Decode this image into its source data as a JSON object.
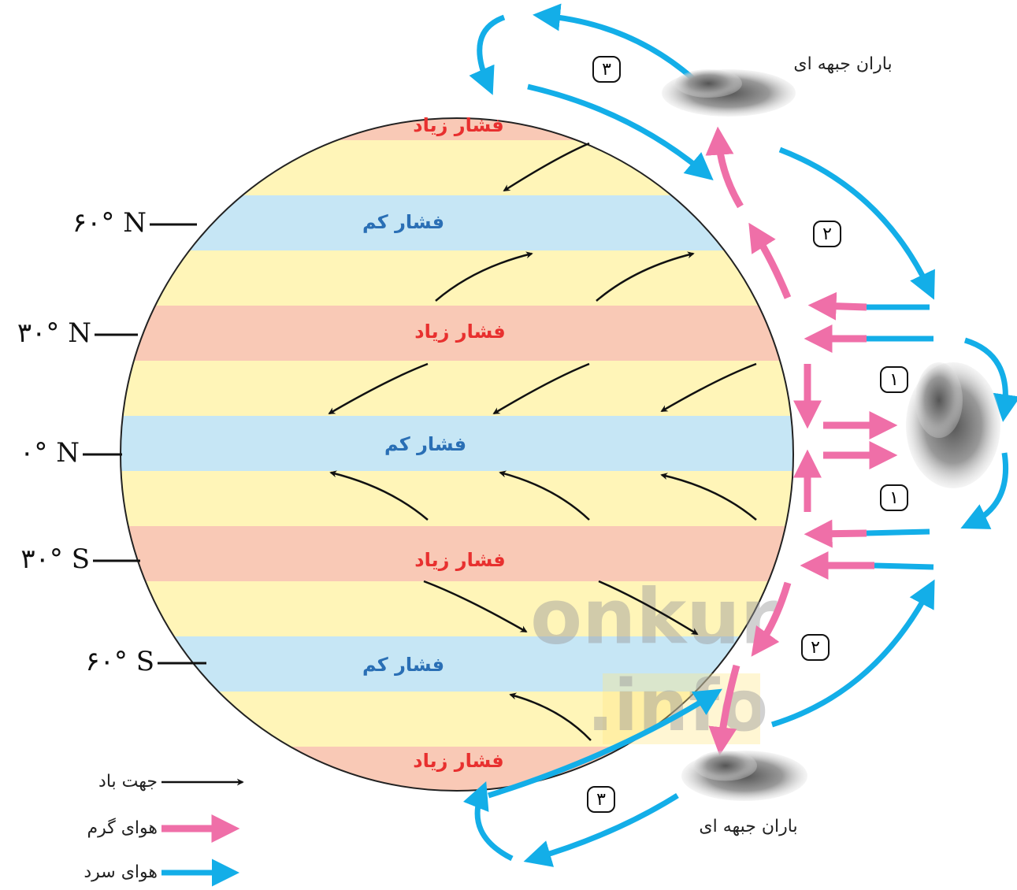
{
  "pressure_labels": [
    "فشار زیاد",
    "فشار کم",
    "فشار زیاد",
    "فشار کم",
    "فشار زیاد",
    "فشار کم",
    "فشار زیاد"
  ],
  "latitudes": [
    "۶۰° N",
    "۳۰° N",
    "۰° N",
    "۳۰° S",
    "۶۰° S"
  ],
  "front_rain_labels": [
    "باران جبهه ای",
    "باران جبهه ای"
  ],
  "cell_numbers": [
    "۳",
    "۲",
    "۱",
    "۱",
    "۲",
    "۳"
  ],
  "legend": [
    "جهت باد",
    "هوای گرم",
    "هوای سرد"
  ],
  "watermark": [
    "onkur",
    ".info"
  ]
}
